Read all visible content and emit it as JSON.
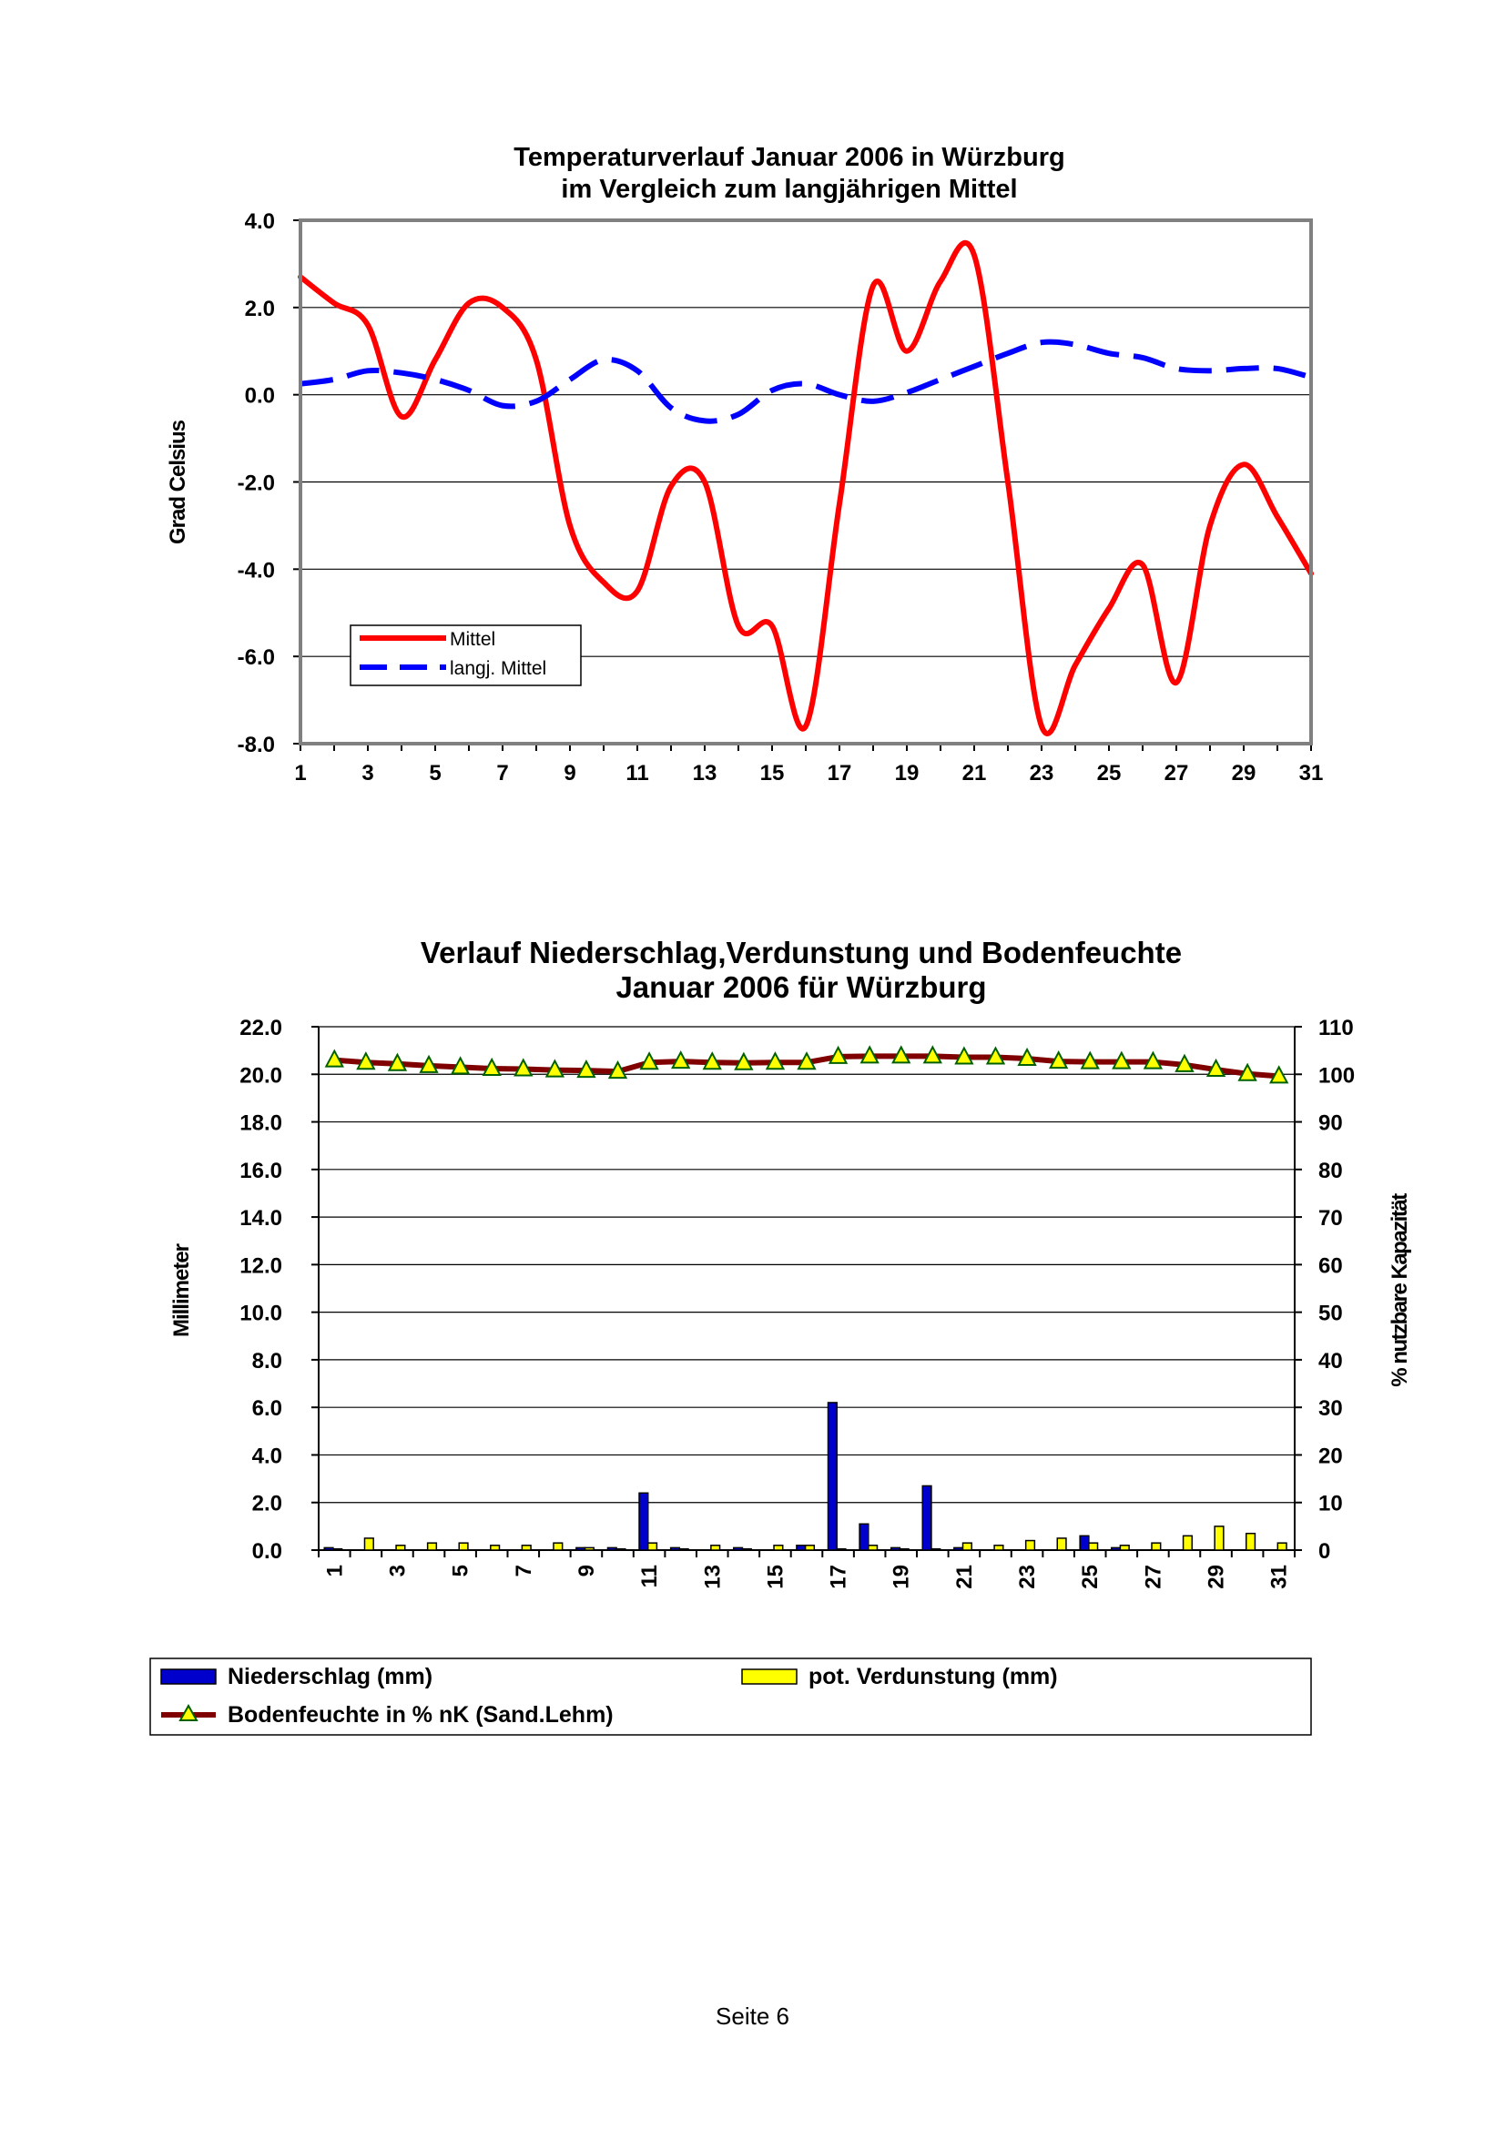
{
  "chart_data": [
    {
      "type": "line",
      "title": "Temperaturverlauf Januar 2006 in Würzburg",
      "subtitle": "im Vergleich zum langjährigen Mittel",
      "xlabel": "",
      "ylabel": "Grad Celsius",
      "ylim": [
        -8,
        4
      ],
      "xlim": [
        1,
        31
      ],
      "yticks": [
        "4.0",
        "2.0",
        "0.0",
        "-2.0",
        "-4.0",
        "-6.0",
        "-8.0"
      ],
      "xticks": [
        "1",
        "3",
        "5",
        "7",
        "9",
        "11",
        "13",
        "15",
        "17",
        "19",
        "21",
        "23",
        "25",
        "27",
        "29",
        "31"
      ],
      "grid": true,
      "legend": "lower-left",
      "x": [
        1,
        2,
        3,
        4,
        5,
        6,
        7,
        8,
        9,
        10,
        11,
        12,
        13,
        14,
        15,
        16,
        17,
        18,
        19,
        20,
        21,
        22,
        23,
        24,
        25,
        26,
        27,
        28,
        29,
        30,
        31
      ],
      "series": [
        {
          "name": "Mittel",
          "color": "#ff0000",
          "style": "solid",
          "values": [
            2.7,
            2.1,
            1.6,
            -0.5,
            0.8,
            2.1,
            2.0,
            0.8,
            -3.0,
            -4.3,
            -4.5,
            -2.1,
            -2.0,
            -5.3,
            -5.3,
            -7.6,
            -2.5,
            2.5,
            1.0,
            2.6,
            3.2,
            -2.0,
            -7.6,
            -6.2,
            -4.9,
            -3.9,
            -6.6,
            -3.0,
            -1.6,
            -2.8,
            -4.1
          ]
        },
        {
          "name": "langj. Mittel",
          "color": "#0000ff",
          "style": "dashed",
          "values": [
            0.25,
            0.35,
            0.55,
            0.5,
            0.35,
            0.1,
            -0.25,
            -0.15,
            0.35,
            0.8,
            0.55,
            -0.3,
            -0.6,
            -0.45,
            0.1,
            0.25,
            0.0,
            -0.15,
            0.05,
            0.35,
            0.65,
            0.95,
            1.2,
            1.15,
            0.95,
            0.85,
            0.6,
            0.55,
            0.6,
            0.6,
            0.4
          ]
        }
      ]
    },
    {
      "type": "bar",
      "title": "Verlauf Niederschlag,Verdunstung und Bodenfeuchte",
      "subtitle": "Januar 2006 für Würzburg",
      "xlabel": "",
      "ylabel": "Millimeter",
      "ylabel_right": "% nutzbare Kapazität",
      "ylim": [
        0,
        22
      ],
      "ylim_right": [
        0,
        110
      ],
      "yticks": [
        "22.0",
        "20.0",
        "18.0",
        "16.0",
        "14.0",
        "12.0",
        "10.0",
        "8.0",
        "6.0",
        "4.0",
        "2.0",
        "0.0"
      ],
      "yticks_right": [
        "110",
        "100",
        "90",
        "80",
        "70",
        "60",
        "50",
        "40",
        "30",
        "20",
        "10",
        "0"
      ],
      "categories": [
        "1",
        "2",
        "3",
        "4",
        "5",
        "6",
        "7",
        "8",
        "9",
        "10",
        "11",
        "12",
        "13",
        "14",
        "15",
        "16",
        "17",
        "18",
        "19",
        "20",
        "21",
        "22",
        "23",
        "24",
        "25",
        "26",
        "27",
        "28",
        "29",
        "30",
        "31"
      ],
      "xtick_labels": [
        "1",
        "3",
        "5",
        "7",
        "9",
        "11",
        "13",
        "15",
        "17",
        "19",
        "21",
        "23",
        "25",
        "27",
        "29",
        "31"
      ],
      "grid": true,
      "legend": "bottom",
      "series": [
        {
          "name": "Niederschlag (mm)",
          "color": "#0000cc",
          "type": "bar",
          "axis": "left",
          "values": [
            0.1,
            0.0,
            0.0,
            0.0,
            0.0,
            0.0,
            0.0,
            0.0,
            0.1,
            0.1,
            2.4,
            0.1,
            0.0,
            0.1,
            0.0,
            0.2,
            6.2,
            1.1,
            0.1,
            2.7,
            0.1,
            0.0,
            0.0,
            0.0,
            0.6,
            0.1,
            0.0,
            0.0,
            0.0,
            0.0,
            0.0
          ]
        },
        {
          "name": "pot. Verdunstung (mm)",
          "color": "#ffff00",
          "type": "bar",
          "axis": "left",
          "values": [
            0.05,
            0.5,
            0.2,
            0.3,
            0.3,
            0.2,
            0.2,
            0.3,
            0.1,
            0.05,
            0.3,
            0.05,
            0.2,
            0.05,
            0.2,
            0.2,
            0.05,
            0.2,
            0.05,
            0.05,
            0.3,
            0.2,
            0.4,
            0.5,
            0.3,
            0.2,
            0.3,
            0.6,
            1.0,
            0.7,
            0.3
          ]
        },
        {
          "name": "Bodenfeuchte in % nK (Sand.Lehm)",
          "color": "#800000",
          "marker_color": "#ffff00",
          "type": "line",
          "axis": "right",
          "values": [
            103,
            102.5,
            102.2,
            101.8,
            101.5,
            101.2,
            101.1,
            100.9,
            100.8,
            100.6,
            102.5,
            102.7,
            102.5,
            102.4,
            102.5,
            102.5,
            103.7,
            103.8,
            103.8,
            103.8,
            103.6,
            103.6,
            103.3,
            102.7,
            102.6,
            102.6,
            102.6,
            102.0,
            101.0,
            100.1,
            99.6
          ]
        }
      ]
    }
  ],
  "footer": {
    "page_label": "Seite 6"
  }
}
